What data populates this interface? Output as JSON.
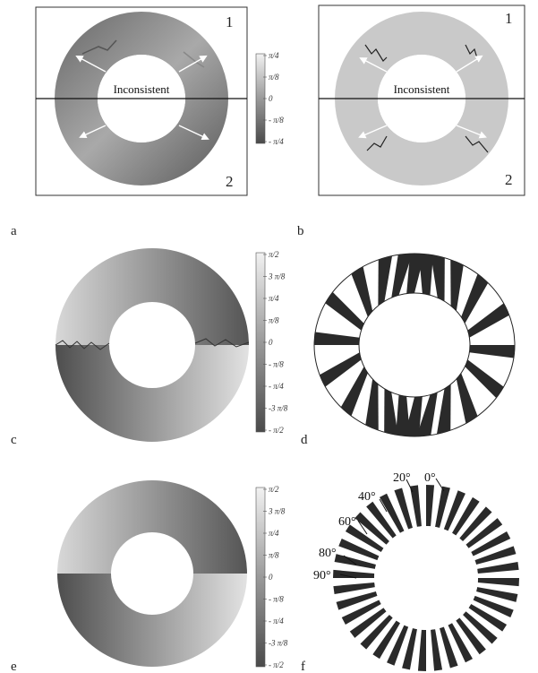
{
  "panels": {
    "a": {
      "letter": "a",
      "label": "Inconsistent",
      "region1": "1",
      "region2": "2"
    },
    "b": {
      "letter": "b",
      "label": "Inconsistent",
      "region1": "1",
      "region2": "2"
    },
    "c": {
      "letter": "c"
    },
    "d": {
      "letter": "d"
    },
    "e": {
      "letter": "e"
    },
    "f": {
      "letter": "f"
    }
  },
  "colorbars": {
    "small": [
      "π/4",
      "π/8",
      "0",
      "- π/8",
      "- π/4"
    ],
    "large": [
      "π/2",
      "3 π/8",
      "π/4",
      "π/8",
      "0",
      "- π/8",
      "- π/4",
      "-3 π/8",
      "- π/2"
    ]
  },
  "angle_labels": [
    "0°",
    "20°",
    "40°",
    "60°",
    "80°",
    "90°"
  ],
  "colors": {
    "dark": "#4a4a4a",
    "mid": "#8f8f8f",
    "light": "#e8e8e8",
    "stripe": "#2a2a2a",
    "arrow": "#ffffff"
  }
}
